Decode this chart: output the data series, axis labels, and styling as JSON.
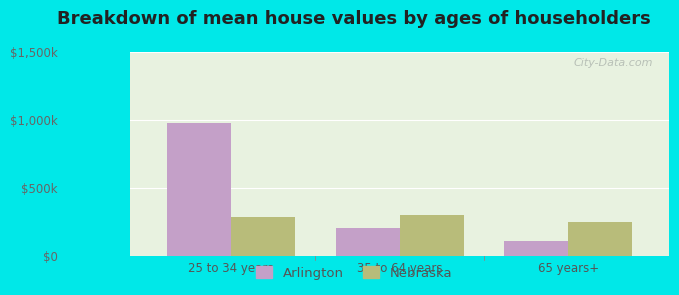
{
  "title": "Breakdown of mean house values by ages of householders",
  "categories": [
    "25 to 34 years",
    "35 to 64 years",
    "65 years+"
  ],
  "arlington_values": [
    975000,
    200000,
    110000
  ],
  "nebraska_values": [
    285000,
    295000,
    250000
  ],
  "arlington_color": "#c4a0c8",
  "nebraska_color": "#b8bc7a",
  "background_outer": "#00e8e8",
  "background_inner": "#e8f2e0",
  "ylim": [
    0,
    1500000
  ],
  "yticks": [
    0,
    500000,
    1000000,
    1500000
  ],
  "ytick_labels": [
    "$0",
    "$500k",
    "$1,000k",
    "$1,500k"
  ],
  "legend_labels": [
    "Arlington",
    "Nebraska"
  ],
  "bar_width": 0.38,
  "title_fontsize": 13,
  "tick_fontsize": 8.5,
  "legend_fontsize": 9.5
}
